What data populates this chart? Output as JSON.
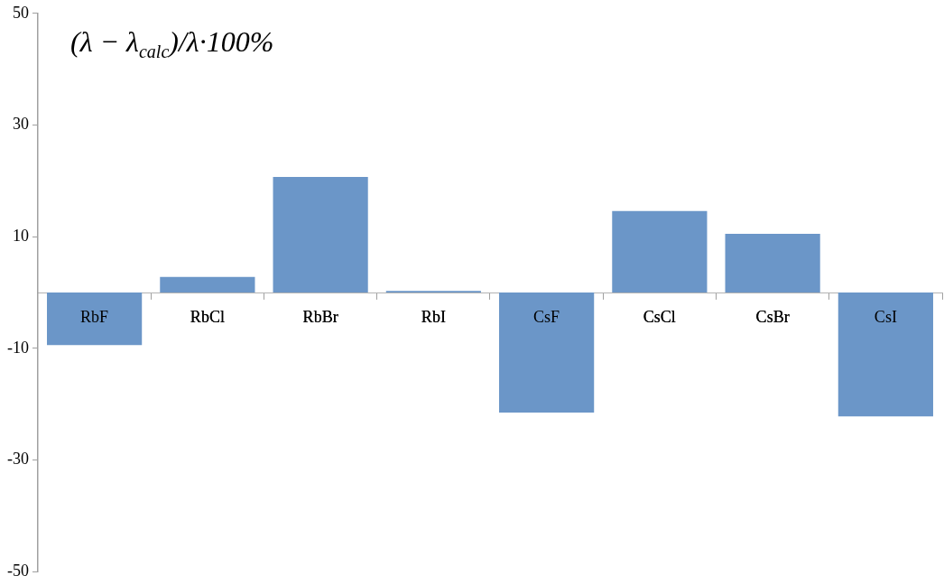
{
  "chart_data": {
    "type": "bar",
    "title": "(λ − λ$_{calc}$)/λ·100%",
    "categories": [
      "RbF",
      "RbCl",
      "RbBr",
      "RbI",
      "CsF",
      "CsCl",
      "CsBr",
      "CsI"
    ],
    "values": [
      -9.4,
      2.8,
      20.7,
      0.3,
      -21.5,
      14.6,
      10.5,
      -22.2
    ],
    "color": "#6b96c8",
    "ylim": [
      -50,
      50
    ],
    "yticks": [
      -50,
      -30,
      -10,
      10,
      30,
      50
    ],
    "grid": false,
    "legend": false
  }
}
